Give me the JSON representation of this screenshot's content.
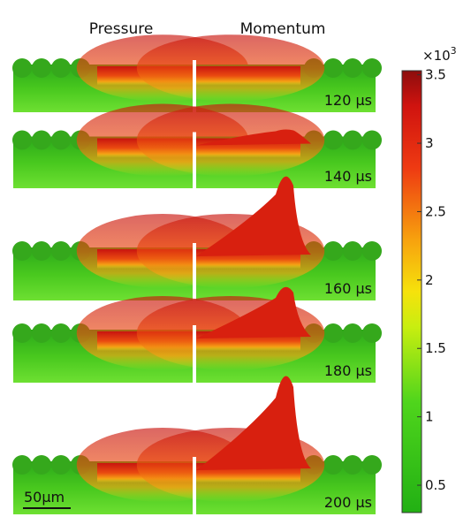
{
  "columns": [
    "Pressure",
    "Momentum"
  ],
  "panels": {
    "rows": [
      {
        "time": "120 µs"
      },
      {
        "time": "140 µs"
      },
      {
        "time": "160 µs"
      },
      {
        "time": "180 µs"
      },
      {
        "time": "200 µs"
      }
    ]
  },
  "scale_bar": "50µm",
  "colorbar": {
    "multiplier": "×10",
    "exponent": "3",
    "lim": [
      0.3,
      3.53
    ],
    "ticks": [
      0.5,
      1,
      1.5,
      2,
      2.5,
      3,
      3.5
    ]
  }
}
